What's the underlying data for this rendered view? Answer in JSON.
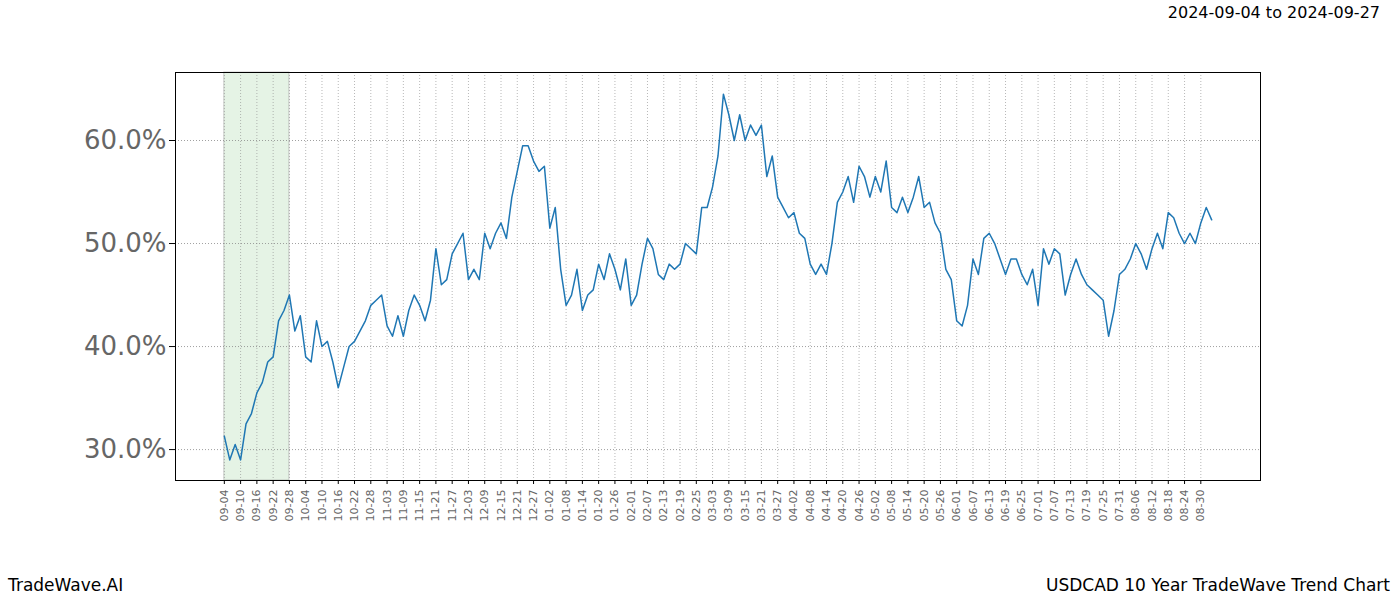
{
  "chart_data": {
    "type": "line",
    "title": "2024-09-04 to 2024-09-27",
    "source": "TradeWave.AI",
    "caption": "USDCAD 10 Year TradeWave Trend Chart",
    "color": "#1f77b4",
    "highlight": [
      "09-04",
      "09-28"
    ],
    "grid": true,
    "categories": [
      "09-04",
      null,
      null,
      "09-10",
      null,
      null,
      "09-16",
      null,
      null,
      "09-22",
      null,
      null,
      "09-28",
      null,
      null,
      "10-04",
      null,
      null,
      "10-10",
      null,
      null,
      "10-16",
      null,
      null,
      "10-22",
      null,
      null,
      "10-28",
      null,
      null,
      "11-03",
      null,
      null,
      "11-09",
      null,
      null,
      "11-15",
      null,
      null,
      "11-21",
      null,
      null,
      "11-27",
      null,
      null,
      "12-03",
      null,
      null,
      "12-09",
      null,
      null,
      "12-15",
      null,
      null,
      "12-21",
      null,
      null,
      "12-27",
      null,
      null,
      "01-02",
      null,
      null,
      "01-08",
      null,
      null,
      "01-14",
      null,
      null,
      "01-20",
      null,
      null,
      "01-26",
      null,
      null,
      "02-01",
      null,
      null,
      "02-07",
      null,
      null,
      "02-13",
      null,
      null,
      "02-19",
      null,
      null,
      "02-25",
      null,
      null,
      "03-03",
      null,
      null,
      "03-09",
      null,
      null,
      "03-15",
      null,
      null,
      "03-21",
      null,
      null,
      "03-27",
      null,
      null,
      "04-02",
      null,
      null,
      "04-08",
      null,
      null,
      "04-14",
      null,
      null,
      "04-20",
      null,
      null,
      "04-26",
      null,
      null,
      "05-02",
      null,
      null,
      "05-08",
      null,
      null,
      "05-14",
      null,
      null,
      "05-20",
      null,
      null,
      "05-26",
      null,
      null,
      "06-01",
      null,
      null,
      "06-07",
      null,
      null,
      "06-13",
      null,
      null,
      "06-19",
      null,
      null,
      "06-25",
      null,
      null,
      "07-01",
      null,
      null,
      "07-07",
      null,
      null,
      "07-13",
      null,
      null,
      "07-19",
      null,
      null,
      "07-25",
      null,
      null,
      "07-31",
      null,
      null,
      "08-06",
      null,
      null,
      "08-12",
      null,
      null,
      "08-18",
      null,
      null,
      "08-24",
      null,
      null,
      "08-30",
      null,
      null
    ],
    "values": [
      31.3,
      29.0,
      30.5,
      29.0,
      32.5,
      33.5,
      35.5,
      36.5,
      38.5,
      39.0,
      42.5,
      43.5,
      45.0,
      41.5,
      43.0,
      39.0,
      38.5,
      42.5,
      40.0,
      40.5,
      38.5,
      36.0,
      38.0,
      40.0,
      40.5,
      41.5,
      42.5,
      44.0,
      44.5,
      45.0,
      42.0,
      41.0,
      43.0,
      41.0,
      43.5,
      45.0,
      44.0,
      42.5,
      44.5,
      49.5,
      46.0,
      46.5,
      49.0,
      50.0,
      51.0,
      46.5,
      47.5,
      46.5,
      51.0,
      49.5,
      51.0,
      52.0,
      50.5,
      54.5,
      57.0,
      59.5,
      59.5,
      58.0,
      57.0,
      57.5,
      51.5,
      53.5,
      47.5,
      44.0,
      45.0,
      47.5,
      43.5,
      45.0,
      45.5,
      48.0,
      46.5,
      49.0,
      47.5,
      45.5,
      48.5,
      44.0,
      45.0,
      48.0,
      50.5,
      49.5,
      47.0,
      46.5,
      48.0,
      47.5,
      48.0,
      50.0,
      49.5,
      49.0,
      53.5,
      53.5,
      55.5,
      58.5,
      64.5,
      62.5,
      60.0,
      62.5,
      60.0,
      61.5,
      60.5,
      61.5,
      56.5,
      58.5,
      54.5,
      53.5,
      52.5,
      53.0,
      51.0,
      50.5,
      48.0,
      47.0,
      48.0,
      47.0,
      50.0,
      54.0,
      55.0,
      56.5,
      54.0,
      57.5,
      56.5,
      54.5,
      56.5,
      55.0,
      58.0,
      53.5,
      53.0,
      54.5,
      53.0,
      54.5,
      56.5,
      53.5,
      54.0,
      52.0,
      51.0,
      47.5,
      46.5,
      42.5,
      42.0,
      44.0,
      48.5,
      47.0,
      50.5,
      51.0,
      50.0,
      48.5,
      47.0,
      48.5,
      48.5,
      47.0,
      46.0,
      47.5,
      44.0,
      49.5,
      48.0,
      49.5,
      49.0,
      45.0,
      47.0,
      48.5,
      47.0,
      46.0,
      45.5,
      45.0,
      44.5,
      41.0,
      43.5,
      47.0,
      47.5,
      48.5,
      50.0,
      49.0,
      47.5,
      49.5,
      51.0,
      49.5,
      53.0,
      52.5,
      51.0,
      50.0,
      51.0,
      50.0,
      52.0,
      53.5,
      52.3
    ],
    "ylim": [
      27,
      66.6
    ],
    "yticks": [
      {
        "value": 30,
        "label": "30.0%"
      },
      {
        "value": 40,
        "label": "40.0%"
      },
      {
        "value": 50,
        "label": "50.0%"
      },
      {
        "value": 60,
        "label": "60.0%"
      }
    ]
  }
}
